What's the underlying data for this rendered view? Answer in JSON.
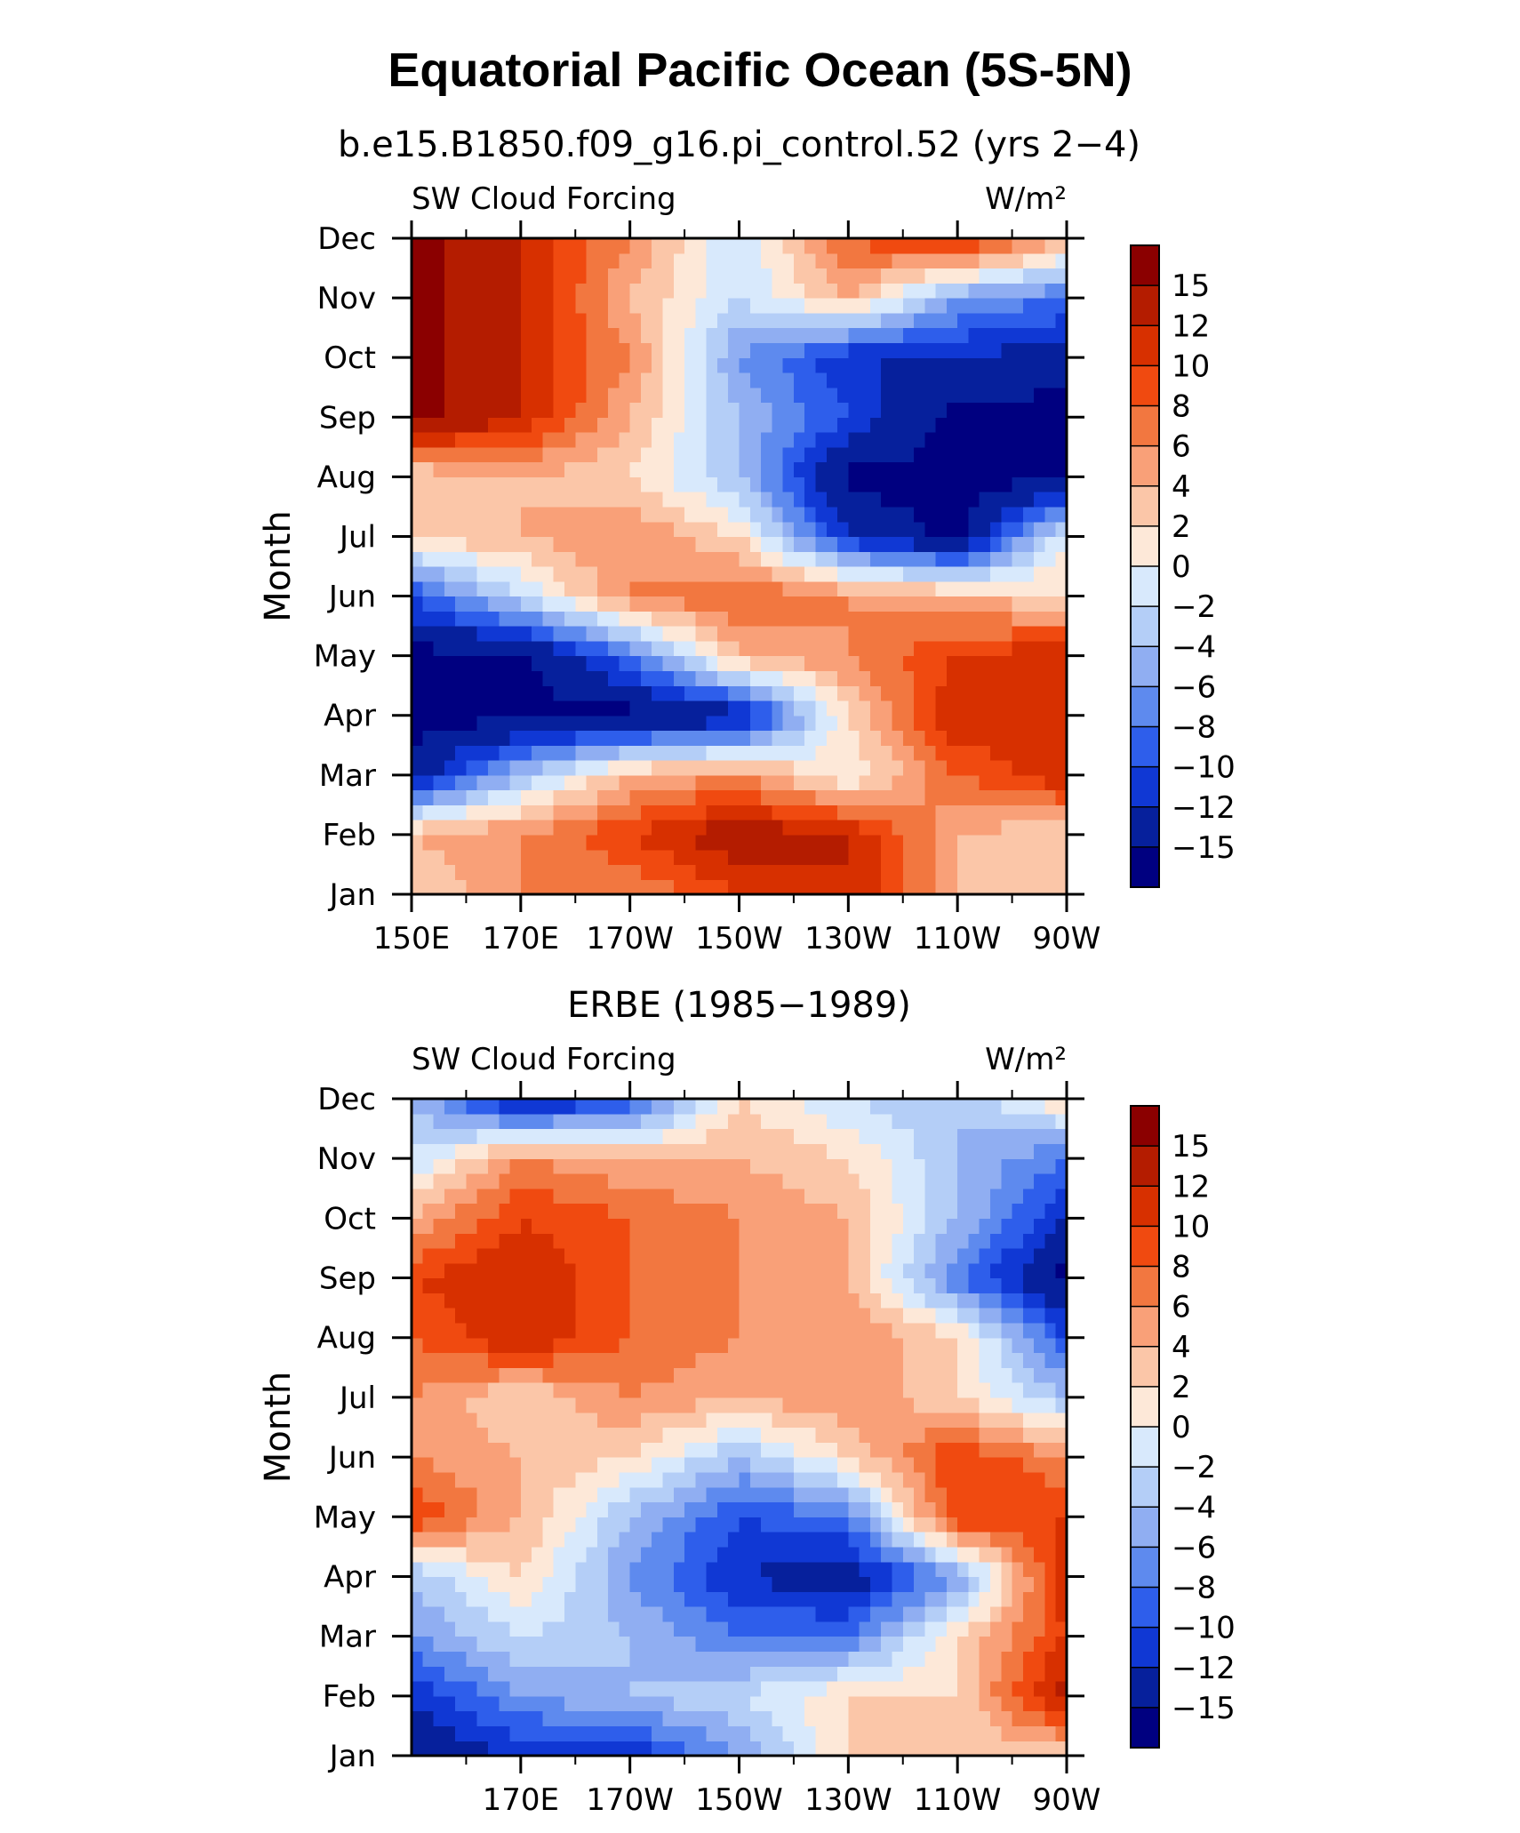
{
  "title": "Equatorial Pacific Ocean (5S-5N)",
  "chart_data": [
    {
      "type": "heatmap",
      "title": "b.e15.B1850.f09_g16.pi_control.52 (yrs 2−4)",
      "left_label": "SW Cloud Forcing",
      "right_label": "W/m²",
      "ylabel": "Month",
      "xlabel": "",
      "x_ticks": [
        "150E",
        "170E",
        "170W",
        "150W",
        "130W",
        "110W",
        "90W"
      ],
      "y_ticks": [
        "Jan",
        "Feb",
        "Mar",
        "Apr",
        "May",
        "Jun",
        "Jul",
        "Aug",
        "Sep",
        "Oct",
        "Nov",
        "Dec"
      ],
      "x_range_deg_east": [
        150,
        270
      ],
      "colorbar_levels": [
        "15",
        "12",
        "10",
        "8",
        "6",
        "4",
        "2",
        "0",
        "−2",
        "−4",
        "−6",
        "−8",
        "−10",
        "−12",
        "−15"
      ],
      "columns_deg_east": [
        150,
        170,
        190,
        210,
        230,
        250,
        270
      ],
      "values_by_month": [
        [
          2,
          6,
          6,
          10,
          12,
          4,
          2
        ],
        [
          4,
          6,
          10,
          14,
          12,
          4,
          2
        ],
        [
          -14,
          -4,
          4,
          6,
          0,
          8,
          12
        ],
        [
          -16,
          -16,
          -16,
          -14,
          2,
          12,
          10
        ],
        [
          -16,
          -16,
          -8,
          4,
          6,
          10,
          12
        ],
        [
          -10,
          -2,
          6,
          8,
          6,
          4,
          2
        ],
        [
          2,
          4,
          6,
          2,
          -12,
          -16,
          0
        ],
        [
          2,
          4,
          2,
          -4,
          -16,
          -16,
          -16
        ],
        [
          16,
          12,
          4,
          -4,
          -10,
          -16,
          -16
        ],
        [
          16,
          12,
          6,
          -6,
          -12,
          -12,
          -14
        ],
        [
          16,
          12,
          4,
          -2,
          4,
          -6,
          -8
        ],
        [
          16,
          12,
          6,
          -2,
          8,
          12,
          4
        ]
      ]
    },
    {
      "type": "heatmap",
      "title": "ERBE (1985−1989)",
      "left_label": "SW Cloud Forcing",
      "right_label": "W/m²",
      "ylabel": "Month",
      "xlabel": "",
      "x_ticks": [
        "170E",
        "170W",
        "150W",
        "130W",
        "110W",
        "90W"
      ],
      "y_ticks": [
        "Jan",
        "Feb",
        "Mar",
        "Apr",
        "May",
        "Jun",
        "Jul",
        "Aug",
        "Sep",
        "Oct",
        "Nov",
        "Dec"
      ],
      "x_range_deg_east": [
        150,
        270
      ],
      "colorbar_levels": [
        "15",
        "12",
        "10",
        "8",
        "6",
        "4",
        "2",
        "0",
        "−2",
        "−4",
        "−6",
        "−8",
        "−10",
        "−12",
        "−15"
      ],
      "columns_deg_east": [
        150,
        170,
        190,
        210,
        230,
        250,
        270
      ],
      "values_by_month": [
        [
          -14,
          -12,
          -12,
          -6,
          2,
          2,
          2
        ],
        [
          -12,
          -6,
          -4,
          -2,
          2,
          2,
          14
        ],
        [
          -6,
          -2,
          -4,
          -8,
          -8,
          2,
          10
        ],
        [
          -4,
          2,
          -6,
          -12,
          -14,
          -6,
          12
        ],
        [
          10,
          4,
          -4,
          -10,
          -8,
          10,
          10
        ],
        [
          6,
          4,
          2,
          -4,
          2,
          10,
          6
        ],
        [
          6,
          2,
          6,
          4,
          6,
          2,
          -4
        ],
        [
          8,
          12,
          8,
          6,
          6,
          2,
          -10
        ],
        [
          10,
          12,
          8,
          6,
          4,
          -8,
          -16
        ],
        [
          4,
          10,
          8,
          6,
          4,
          -4,
          -12
        ],
        [
          -2,
          6,
          4,
          4,
          2,
          -4,
          -8
        ],
        [
          -4,
          -14,
          -10,
          2,
          -2,
          -4,
          2
        ]
      ]
    }
  ],
  "colors": {
    "palette_high_to_low": [
      "#8B0000",
      "#B41C00",
      "#D73000",
      "#F04A10",
      "#F27740",
      "#F9A078",
      "#FBC6A8",
      "#FDE8D8",
      "#D8E9FC",
      "#B4CEF7",
      "#90AEF2",
      "#5E8AEE",
      "#2E5EEB",
      "#1038D4",
      "#06209C",
      "#000080"
    ]
  }
}
